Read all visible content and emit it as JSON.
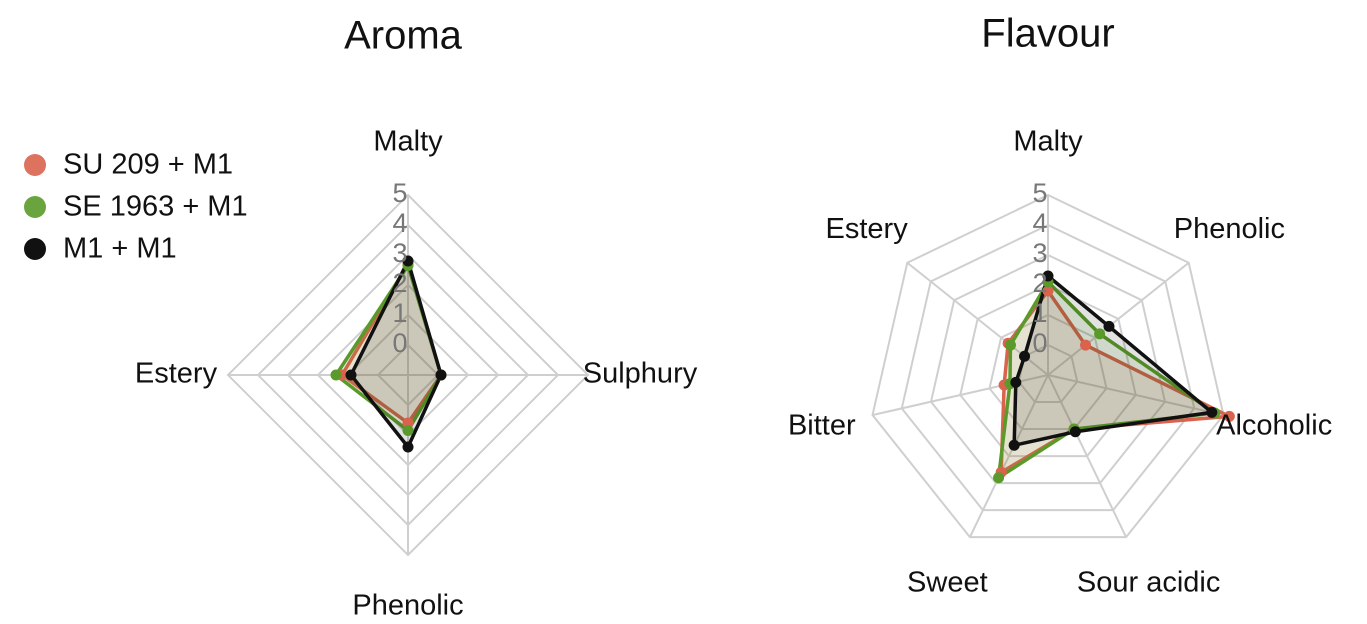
{
  "chart_data": [
    {
      "type": "radar",
      "title": "Aroma",
      "legend": "upper left",
      "categories": [
        "Malty",
        "Sulphury",
        "Phenolic",
        "Estery"
      ],
      "series": [
        {
          "name": "SU 209 + M1",
          "color": "#d9634d",
          "values": [
            2.7,
            0.1,
            0.6,
            1.2
          ]
        },
        {
          "name": "SE 1963 + M1",
          "color": "#5a9a2a",
          "values": [
            2.65,
            0.1,
            0.85,
            1.4
          ]
        },
        {
          "name": "M1 + M1",
          "color": "#111111",
          "values": [
            2.8,
            0.1,
            1.4,
            0.9
          ]
        }
      ],
      "ylim": [
        -1,
        5
      ],
      "yticks": [
        0,
        1,
        2,
        3,
        4,
        5
      ],
      "grid": true
    },
    {
      "type": "radar",
      "title": "Flavour",
      "categories": [
        "Malty",
        "Phenolic",
        "Alcoholic",
        "Sour acidic",
        "Sweet",
        "Bitter",
        "Estery"
      ],
      "series": [
        {
          "color": "#d9634d",
          "values": [
            1.8,
            0.6,
            5.2,
            1.0,
            2.6,
            0.5,
            0.7
          ]
        },
        {
          "color": "#5a9a2a",
          "values": [
            2.1,
            1.2,
            4.7,
            1.0,
            2.8,
            0.3,
            0.6
          ]
        },
        {
          "color": "#111111",
          "values": [
            2.3,
            1.6,
            4.6,
            1.1,
            1.6,
            0.1,
            0
          ]
        }
      ],
      "ylim": [
        -1,
        5
      ],
      "yticks": [
        0,
        1,
        2,
        3,
        4,
        5
      ],
      "grid": true
    }
  ]
}
